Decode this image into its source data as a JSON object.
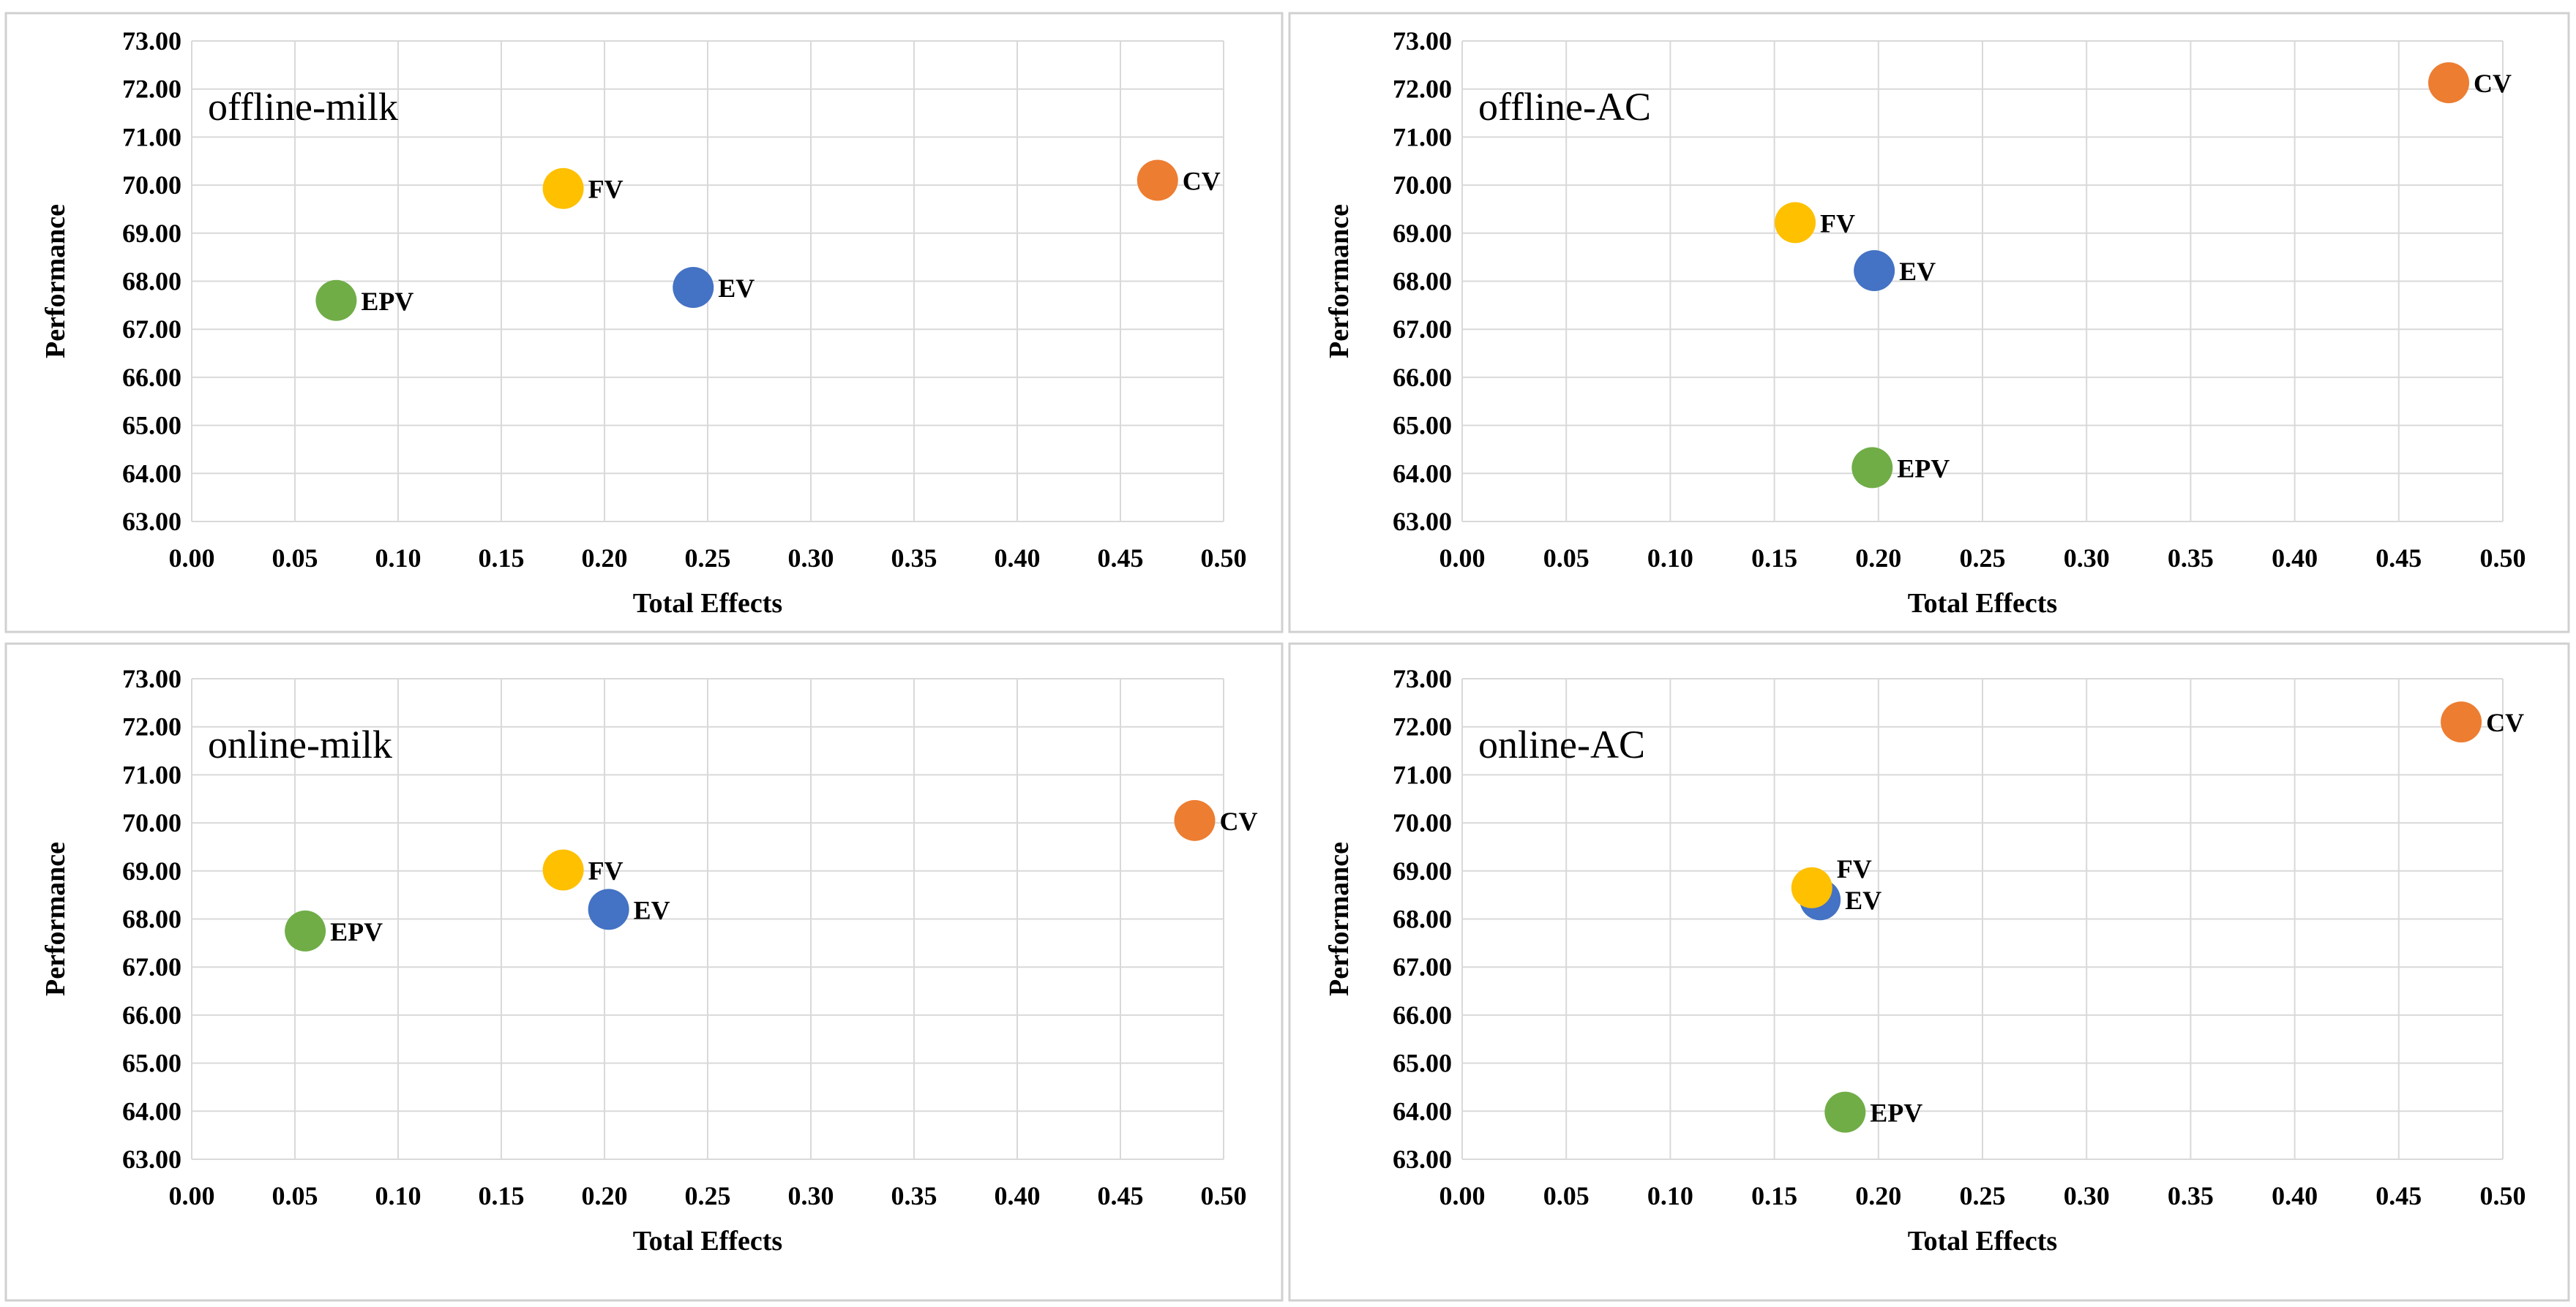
{
  "colors": {
    "CV": "#ED7D31",
    "FV": "#FFC000",
    "EV": "#4472C4",
    "EPV": "#70AD47",
    "grid": "#d9d9d9",
    "panel_border": "#d0d0d0",
    "text": "#000000"
  },
  "chart_data": [
    {
      "type": "scatter",
      "title": "offline-milk",
      "xlabel": "Total Effects",
      "ylabel": "Performance",
      "xlim": [
        0.0,
        0.5
      ],
      "ylim": [
        63.0,
        73.0
      ],
      "xticks": [
        "0.00",
        "0.05",
        "0.10",
        "0.15",
        "0.20",
        "0.25",
        "0.30",
        "0.35",
        "0.40",
        "0.45",
        "0.50"
      ],
      "yticks": [
        "63.00",
        "64.00",
        "65.00",
        "66.00",
        "67.00",
        "68.00",
        "69.00",
        "70.00",
        "71.00",
        "72.00",
        "73.00"
      ],
      "grid": true,
      "points": [
        {
          "label": "CV",
          "x": 0.468,
          "y": 70.1
        },
        {
          "label": "FV",
          "x": 0.18,
          "y": 69.93
        },
        {
          "label": "EV",
          "x": 0.243,
          "y": 67.87
        },
        {
          "label": "EPV",
          "x": 0.07,
          "y": 67.6
        }
      ]
    },
    {
      "type": "scatter",
      "title": "offline-AC",
      "xlabel": "Total Effects",
      "ylabel": "Performance",
      "xlim": [
        0.0,
        0.5
      ],
      "ylim": [
        63.0,
        73.0
      ],
      "xticks": [
        "0.00",
        "0.05",
        "0.10",
        "0.15",
        "0.20",
        "0.25",
        "0.30",
        "0.35",
        "0.40",
        "0.45",
        "0.50"
      ],
      "yticks": [
        "63.00",
        "64.00",
        "65.00",
        "66.00",
        "67.00",
        "68.00",
        "69.00",
        "70.00",
        "71.00",
        "72.00",
        "73.00"
      ],
      "grid": true,
      "points": [
        {
          "label": "CV",
          "x": 0.474,
          "y": 72.13
        },
        {
          "label": "FV",
          "x": 0.16,
          "y": 69.22
        },
        {
          "label": "EV",
          "x": 0.198,
          "y": 68.22
        },
        {
          "label": "EPV",
          "x": 0.197,
          "y": 64.12
        }
      ]
    },
    {
      "type": "scatter",
      "title": "online-milk",
      "xlabel": "Total Effects",
      "ylabel": "Performance",
      "xlim": [
        0.0,
        0.5
      ],
      "ylim": [
        63.0,
        73.0
      ],
      "xticks": [
        "0.00",
        "0.05",
        "0.10",
        "0.15",
        "0.20",
        "0.25",
        "0.30",
        "0.35",
        "0.40",
        "0.45",
        "0.50"
      ],
      "yticks": [
        "63.00",
        "64.00",
        "65.00",
        "66.00",
        "67.00",
        "68.00",
        "69.00",
        "70.00",
        "71.00",
        "72.00",
        "73.00"
      ],
      "grid": true,
      "points": [
        {
          "label": "CV",
          "x": 0.486,
          "y": 70.05
        },
        {
          "label": "FV",
          "x": 0.18,
          "y": 69.02
        },
        {
          "label": "EV",
          "x": 0.202,
          "y": 68.2
        },
        {
          "label": "EPV",
          "x": 0.055,
          "y": 67.75
        }
      ]
    },
    {
      "type": "scatter",
      "title": "online-AC",
      "xlabel": "Total Effects",
      "ylabel": "Performance",
      "xlim": [
        0.0,
        0.5
      ],
      "ylim": [
        63.0,
        73.0
      ],
      "xticks": [
        "0.00",
        "0.05",
        "0.10",
        "0.15",
        "0.20",
        "0.25",
        "0.30",
        "0.35",
        "0.40",
        "0.45",
        "0.50"
      ],
      "yticks": [
        "63.00",
        "64.00",
        "65.00",
        "66.00",
        "67.00",
        "68.00",
        "69.00",
        "70.00",
        "71.00",
        "72.00",
        "73.00"
      ],
      "grid": true,
      "points": [
        {
          "label": "EV",
          "x": 0.172,
          "y": 68.4
        },
        {
          "label": "FV",
          "x": 0.168,
          "y": 68.65
        },
        {
          "label": "CV",
          "x": 0.48,
          "y": 72.1
        },
        {
          "label": "EPV",
          "x": 0.184,
          "y": 63.98
        }
      ]
    }
  ]
}
